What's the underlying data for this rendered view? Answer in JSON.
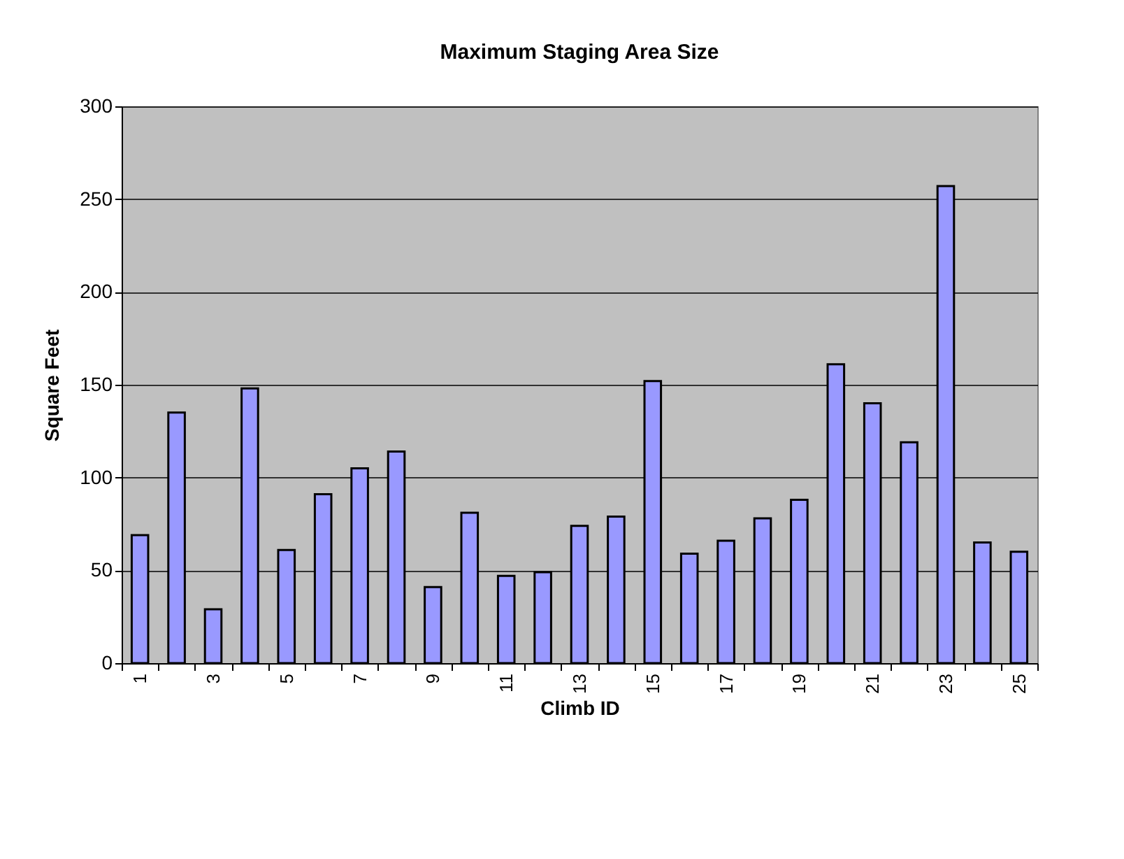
{
  "chart_data": {
    "type": "bar",
    "title": "Maximum Staging Area Size",
    "xlabel": "Climb ID",
    "ylabel": "Square Feet",
    "categories": [
      "1",
      null,
      "3",
      null,
      "5",
      null,
      "7",
      null,
      "9",
      null,
      "11",
      null,
      "13",
      null,
      "15",
      null,
      "17",
      null,
      "19",
      null,
      "21",
      null,
      "23",
      null,
      "25"
    ],
    "values": [
      69,
      135,
      29,
      148,
      61,
      91,
      105,
      114,
      41,
      81,
      47,
      49,
      74,
      79,
      152,
      59,
      66,
      78,
      88,
      161,
      140,
      119,
      257,
      65,
      60
    ],
    "color": "#9999ff",
    "ylim": [
      0,
      300
    ],
    "yticks": [
      0,
      50,
      100,
      150,
      200,
      250,
      300
    ],
    "grid": "y"
  }
}
